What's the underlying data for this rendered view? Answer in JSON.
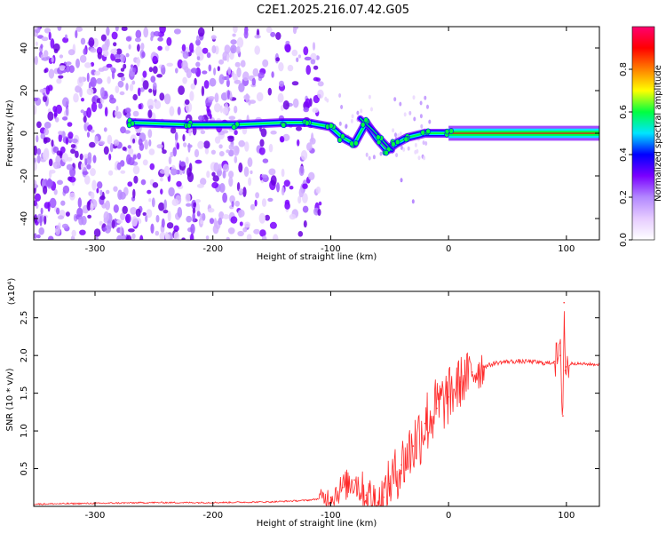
{
  "title": "C2E1.2025.216.07.42.G05",
  "chart_data": [
    {
      "type": "heatmap",
      "xlabel": "Height of straight line (km)",
      "ylabel": "Frequency (Hz)",
      "xlim": [
        -352,
        128
      ],
      "ylim": [
        -50,
        50
      ],
      "xticks": [
        -300,
        -200,
        -100,
        0,
        100
      ],
      "yticks": [
        -40,
        -20,
        0,
        20,
        40
      ],
      "colorbar": {
        "label": "Normalized spectral amplitude",
        "range": [
          0,
          1
        ],
        "ticks": [
          0.0,
          0.2,
          0.4,
          0.6,
          0.8
        ],
        "colors": [
          "#ffffff",
          "#e6ccff",
          "#b388ff",
          "#7a00ff",
          "#0000ff",
          "#00e5ff",
          "#00ff40",
          "#ffff00",
          "#ff8000",
          "#ff0000",
          "#ff0070"
        ]
      },
      "ridge": [
        {
          "x": -270,
          "y": 5
        },
        {
          "x": -220,
          "y": 4
        },
        {
          "x": -180,
          "y": 4
        },
        {
          "x": -140,
          "y": 5
        },
        {
          "x": -120,
          "y": 5
        },
        {
          "x": -100,
          "y": 3
        },
        {
          "x": -90,
          "y": -2
        },
        {
          "x": -80,
          "y": -5
        },
        {
          "x": -70,
          "y": 5
        },
        {
          "x": -60,
          "y": -3
        },
        {
          "x": -52,
          "y": -8
        },
        {
          "x": -45,
          "y": -5
        },
        {
          "x": -35,
          "y": -2
        },
        {
          "x": -20,
          "y": 0
        },
        {
          "x": 0,
          "y": 0
        },
        {
          "x": 128,
          "y": 0
        }
      ],
      "branch": [
        {
          "x": -75,
          "y": 7
        },
        {
          "x": -65,
          "y": 2
        },
        {
          "x": -55,
          "y": -4
        },
        {
          "x": -48,
          "y": -8
        }
      ]
    },
    {
      "type": "line",
      "xlabel": "Height of straight line (km)",
      "ylabel": "SNR (10 * v/v)",
      "multiplier": "(x10⁴)",
      "xlim": [
        -352,
        128
      ],
      "ylim": [
        0,
        2.85
      ],
      "xticks": [
        -300,
        -200,
        -100,
        0,
        100
      ],
      "yticks": [
        0.5,
        1.0,
        1.5,
        2.0,
        2.5
      ],
      "color": "#ff2a2a",
      "series": [
        {
          "x": [
            -352,
            -300,
            -250,
            -200,
            -150,
            -120,
            -100,
            -90,
            -80,
            -70,
            -60,
            -55,
            -50,
            -40,
            -30,
            -20,
            -10,
            0,
            10,
            20,
            30,
            40,
            50,
            60,
            70,
            80,
            85,
            90,
            95,
            97,
            98,
            99,
            100,
            105,
            110,
            128
          ],
          "values": [
            0.03,
            0.04,
            0.05,
            0.05,
            0.06,
            0.08,
            0.12,
            0.25,
            0.35,
            0.15,
            0.05,
            0.12,
            0.3,
            0.55,
            0.8,
            1.1,
            1.3,
            1.45,
            1.65,
            1.78,
            1.85,
            1.9,
            1.92,
            1.92,
            1.92,
            1.9,
            1.9,
            1.92,
            2.0,
            1.2,
            2.7,
            1.8,
            1.85,
            1.9,
            1.89,
            1.88
          ]
        }
      ]
    }
  ]
}
